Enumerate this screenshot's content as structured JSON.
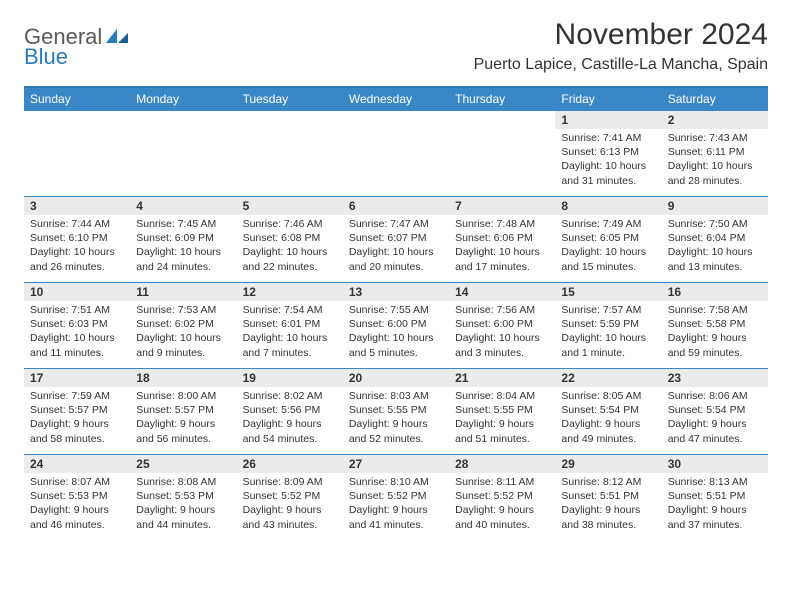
{
  "logo": {
    "text1": "General",
    "text2": "Blue"
  },
  "title": "November 2024",
  "location": "Puerto Lapice, Castille-La Mancha, Spain",
  "colors": {
    "header_bg": "#3a87c7",
    "header_text": "#ffffff",
    "daynum_bg": "#ebebeb",
    "border": "#3a87c7",
    "logo_gray": "#5a5a5a",
    "logo_blue": "#2a7ab8"
  },
  "day_headers": [
    "Sunday",
    "Monday",
    "Tuesday",
    "Wednesday",
    "Thursday",
    "Friday",
    "Saturday"
  ],
  "weeks": [
    [
      null,
      null,
      null,
      null,
      null,
      {
        "n": "1",
        "sunrise": "Sunrise: 7:41 AM",
        "sunset": "Sunset: 6:13 PM",
        "daylight1": "Daylight: 10 hours",
        "daylight2": "and 31 minutes."
      },
      {
        "n": "2",
        "sunrise": "Sunrise: 7:43 AM",
        "sunset": "Sunset: 6:11 PM",
        "daylight1": "Daylight: 10 hours",
        "daylight2": "and 28 minutes."
      }
    ],
    [
      {
        "n": "3",
        "sunrise": "Sunrise: 7:44 AM",
        "sunset": "Sunset: 6:10 PM",
        "daylight1": "Daylight: 10 hours",
        "daylight2": "and 26 minutes."
      },
      {
        "n": "4",
        "sunrise": "Sunrise: 7:45 AM",
        "sunset": "Sunset: 6:09 PM",
        "daylight1": "Daylight: 10 hours",
        "daylight2": "and 24 minutes."
      },
      {
        "n": "5",
        "sunrise": "Sunrise: 7:46 AM",
        "sunset": "Sunset: 6:08 PM",
        "daylight1": "Daylight: 10 hours",
        "daylight2": "and 22 minutes."
      },
      {
        "n": "6",
        "sunrise": "Sunrise: 7:47 AM",
        "sunset": "Sunset: 6:07 PM",
        "daylight1": "Daylight: 10 hours",
        "daylight2": "and 20 minutes."
      },
      {
        "n": "7",
        "sunrise": "Sunrise: 7:48 AM",
        "sunset": "Sunset: 6:06 PM",
        "daylight1": "Daylight: 10 hours",
        "daylight2": "and 17 minutes."
      },
      {
        "n": "8",
        "sunrise": "Sunrise: 7:49 AM",
        "sunset": "Sunset: 6:05 PM",
        "daylight1": "Daylight: 10 hours",
        "daylight2": "and 15 minutes."
      },
      {
        "n": "9",
        "sunrise": "Sunrise: 7:50 AM",
        "sunset": "Sunset: 6:04 PM",
        "daylight1": "Daylight: 10 hours",
        "daylight2": "and 13 minutes."
      }
    ],
    [
      {
        "n": "10",
        "sunrise": "Sunrise: 7:51 AM",
        "sunset": "Sunset: 6:03 PM",
        "daylight1": "Daylight: 10 hours",
        "daylight2": "and 11 minutes."
      },
      {
        "n": "11",
        "sunrise": "Sunrise: 7:53 AM",
        "sunset": "Sunset: 6:02 PM",
        "daylight1": "Daylight: 10 hours",
        "daylight2": "and 9 minutes."
      },
      {
        "n": "12",
        "sunrise": "Sunrise: 7:54 AM",
        "sunset": "Sunset: 6:01 PM",
        "daylight1": "Daylight: 10 hours",
        "daylight2": "and 7 minutes."
      },
      {
        "n": "13",
        "sunrise": "Sunrise: 7:55 AM",
        "sunset": "Sunset: 6:00 PM",
        "daylight1": "Daylight: 10 hours",
        "daylight2": "and 5 minutes."
      },
      {
        "n": "14",
        "sunrise": "Sunrise: 7:56 AM",
        "sunset": "Sunset: 6:00 PM",
        "daylight1": "Daylight: 10 hours",
        "daylight2": "and 3 minutes."
      },
      {
        "n": "15",
        "sunrise": "Sunrise: 7:57 AM",
        "sunset": "Sunset: 5:59 PM",
        "daylight1": "Daylight: 10 hours",
        "daylight2": "and 1 minute."
      },
      {
        "n": "16",
        "sunrise": "Sunrise: 7:58 AM",
        "sunset": "Sunset: 5:58 PM",
        "daylight1": "Daylight: 9 hours",
        "daylight2": "and 59 minutes."
      }
    ],
    [
      {
        "n": "17",
        "sunrise": "Sunrise: 7:59 AM",
        "sunset": "Sunset: 5:57 PM",
        "daylight1": "Daylight: 9 hours",
        "daylight2": "and 58 minutes."
      },
      {
        "n": "18",
        "sunrise": "Sunrise: 8:00 AM",
        "sunset": "Sunset: 5:57 PM",
        "daylight1": "Daylight: 9 hours",
        "daylight2": "and 56 minutes."
      },
      {
        "n": "19",
        "sunrise": "Sunrise: 8:02 AM",
        "sunset": "Sunset: 5:56 PM",
        "daylight1": "Daylight: 9 hours",
        "daylight2": "and 54 minutes."
      },
      {
        "n": "20",
        "sunrise": "Sunrise: 8:03 AM",
        "sunset": "Sunset: 5:55 PM",
        "daylight1": "Daylight: 9 hours",
        "daylight2": "and 52 minutes."
      },
      {
        "n": "21",
        "sunrise": "Sunrise: 8:04 AM",
        "sunset": "Sunset: 5:55 PM",
        "daylight1": "Daylight: 9 hours",
        "daylight2": "and 51 minutes."
      },
      {
        "n": "22",
        "sunrise": "Sunrise: 8:05 AM",
        "sunset": "Sunset: 5:54 PM",
        "daylight1": "Daylight: 9 hours",
        "daylight2": "and 49 minutes."
      },
      {
        "n": "23",
        "sunrise": "Sunrise: 8:06 AM",
        "sunset": "Sunset: 5:54 PM",
        "daylight1": "Daylight: 9 hours",
        "daylight2": "and 47 minutes."
      }
    ],
    [
      {
        "n": "24",
        "sunrise": "Sunrise: 8:07 AM",
        "sunset": "Sunset: 5:53 PM",
        "daylight1": "Daylight: 9 hours",
        "daylight2": "and 46 minutes."
      },
      {
        "n": "25",
        "sunrise": "Sunrise: 8:08 AM",
        "sunset": "Sunset: 5:53 PM",
        "daylight1": "Daylight: 9 hours",
        "daylight2": "and 44 minutes."
      },
      {
        "n": "26",
        "sunrise": "Sunrise: 8:09 AM",
        "sunset": "Sunset: 5:52 PM",
        "daylight1": "Daylight: 9 hours",
        "daylight2": "and 43 minutes."
      },
      {
        "n": "27",
        "sunrise": "Sunrise: 8:10 AM",
        "sunset": "Sunset: 5:52 PM",
        "daylight1": "Daylight: 9 hours",
        "daylight2": "and 41 minutes."
      },
      {
        "n": "28",
        "sunrise": "Sunrise: 8:11 AM",
        "sunset": "Sunset: 5:52 PM",
        "daylight1": "Daylight: 9 hours",
        "daylight2": "and 40 minutes."
      },
      {
        "n": "29",
        "sunrise": "Sunrise: 8:12 AM",
        "sunset": "Sunset: 5:51 PM",
        "daylight1": "Daylight: 9 hours",
        "daylight2": "and 38 minutes."
      },
      {
        "n": "30",
        "sunrise": "Sunrise: 8:13 AM",
        "sunset": "Sunset: 5:51 PM",
        "daylight1": "Daylight: 9 hours",
        "daylight2": "and 37 minutes."
      }
    ]
  ]
}
